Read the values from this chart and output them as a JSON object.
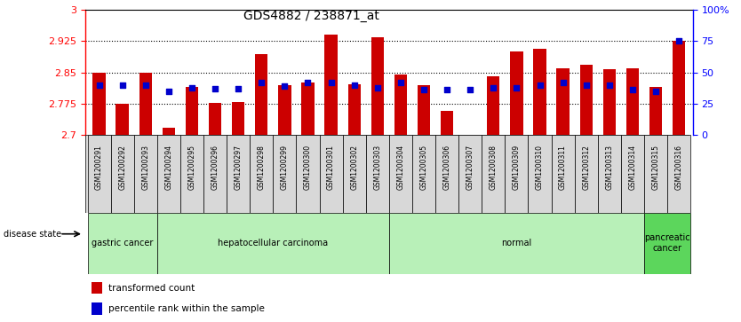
{
  "title": "GDS4882 / 238871_at",
  "samples": [
    "GSM1200291",
    "GSM1200292",
    "GSM1200293",
    "GSM1200294",
    "GSM1200295",
    "GSM1200296",
    "GSM1200297",
    "GSM1200298",
    "GSM1200299",
    "GSM1200300",
    "GSM1200301",
    "GSM1200302",
    "GSM1200303",
    "GSM1200304",
    "GSM1200305",
    "GSM1200306",
    "GSM1200307",
    "GSM1200308",
    "GSM1200309",
    "GSM1200310",
    "GSM1200311",
    "GSM1200312",
    "GSM1200313",
    "GSM1200314",
    "GSM1200315",
    "GSM1200316"
  ],
  "transformed_count": [
    2.85,
    2.775,
    2.85,
    2.718,
    2.815,
    2.778,
    2.78,
    2.893,
    2.82,
    2.825,
    2.94,
    2.822,
    2.935,
    2.845,
    2.82,
    2.758,
    2.7,
    2.84,
    2.9,
    2.907,
    2.86,
    2.868,
    2.858,
    2.86,
    2.815,
    2.925
  ],
  "percentile_rank": [
    40,
    40,
    40,
    35,
    38,
    37,
    37,
    42,
    39,
    42,
    42,
    40,
    38,
    42,
    36,
    36,
    36,
    38,
    38,
    40,
    42,
    40,
    40,
    36,
    35,
    75
  ],
  "group_defs": [
    {
      "label": "gastric cancer",
      "start": 0,
      "end": 2,
      "color": "#b8f0b8",
      "dark": false
    },
    {
      "label": "hepatocellular carcinoma",
      "start": 3,
      "end": 12,
      "color": "#b8f0b8",
      "dark": false
    },
    {
      "label": "normal",
      "start": 13,
      "end": 23,
      "color": "#b8f0b8",
      "dark": false
    },
    {
      "label": "pancreatic\ncancer",
      "start": 24,
      "end": 25,
      "color": "#5cd65c",
      "dark": true
    }
  ],
  "ylim": [
    2.7,
    3.0
  ],
  "yticks": [
    2.7,
    2.775,
    2.85,
    2.925,
    3.0
  ],
  "ytick_labels": [
    "2.7",
    "2.775",
    "2.85",
    "2.925",
    "3"
  ],
  "y2lim": [
    0,
    100
  ],
  "y2ticks": [
    0,
    25,
    50,
    75,
    100
  ],
  "y2tick_labels": [
    "0",
    "25",
    "50",
    "75",
    "100%"
  ],
  "bar_color": "#CC0000",
  "dot_color": "#0000CC",
  "bg_color": "#ffffff",
  "bar_width": 0.55,
  "legend_red_label": "transformed count",
  "legend_blue_label": "percentile rank within the sample",
  "disease_state_label": "disease state"
}
